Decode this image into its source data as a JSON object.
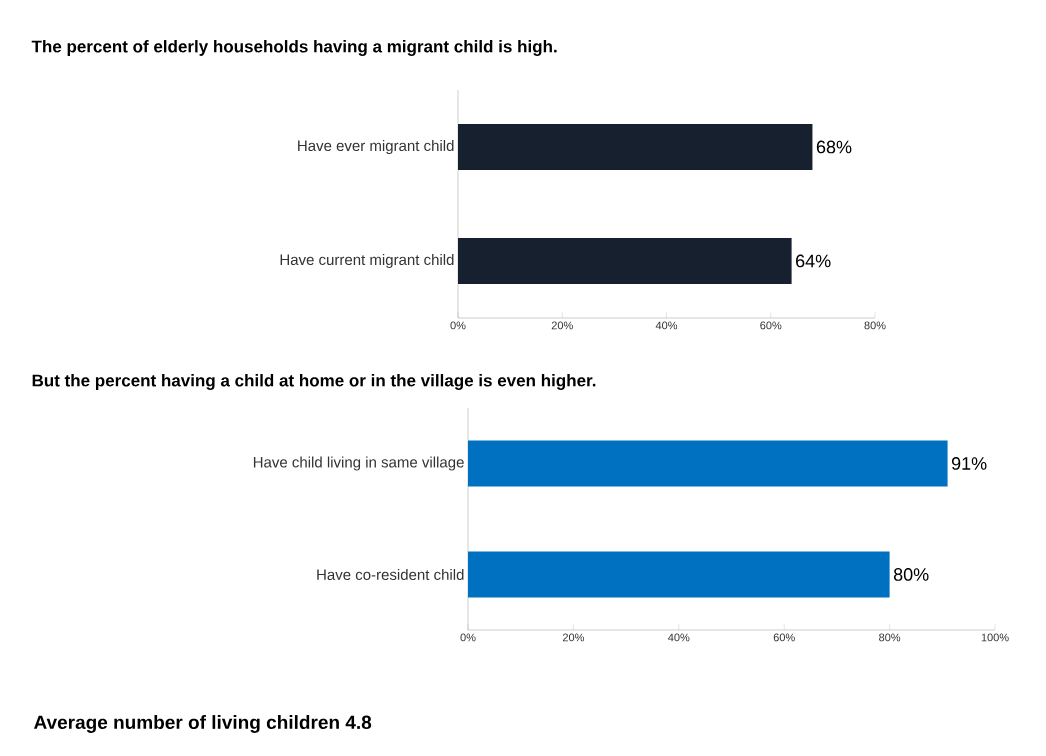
{
  "chart_data": [
    {
      "type": "bar",
      "orientation": "horizontal",
      "title": "The percent of elderly households having a migrant child is high.",
      "categories": [
        "Have ever migrant child",
        "Have current migrant child"
      ],
      "series": [
        {
          "color": "#17202f",
          "values": [
            68,
            64
          ],
          "value_labels": [
            "68%",
            "64%"
          ]
        }
      ],
      "xlim": [
        0,
        80
      ],
      "xticks": [
        {
          "value": 0,
          "label": "0%"
        },
        {
          "value": 20,
          "label": "20%"
        },
        {
          "value": 40,
          "label": "40%"
        },
        {
          "value": 60,
          "label": "60%"
        },
        {
          "value": 80,
          "label": "80%"
        }
      ]
    },
    {
      "type": "bar",
      "orientation": "horizontal",
      "title": "But the percent having a child at home or in the village is even higher.",
      "categories": [
        "Have child living in same village",
        "Have co-resident child"
      ],
      "series": [
        {
          "color": "#0070c0",
          "values": [
            91,
            80
          ],
          "value_labels": [
            "91%",
            "80%"
          ]
        }
      ],
      "xlim": [
        0,
        100
      ],
      "xticks": [
        {
          "value": 0,
          "label": "0%"
        },
        {
          "value": 20,
          "label": "20%"
        },
        {
          "value": 40,
          "label": "40%"
        },
        {
          "value": 60,
          "label": "60%"
        },
        {
          "value": 80,
          "label": "80%"
        },
        {
          "value": 100,
          "label": "100%"
        }
      ],
      "annotations": [
        "Average number of living children 4.8"
      ]
    }
  ]
}
